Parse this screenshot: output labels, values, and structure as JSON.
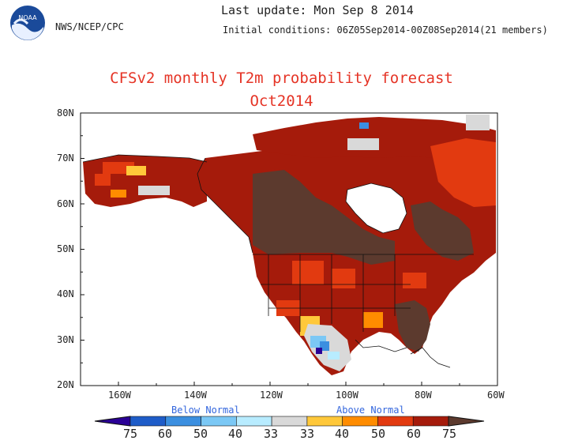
{
  "header": {
    "agency": "NWS/NCEP/CPC",
    "last_update": "Last update: Mon Sep  8 2014",
    "initial_conditions": "Initial conditions: 06Z05Sep2014-00Z08Sep2014(21 members)",
    "logo_text": "NOAA"
  },
  "title": "CFSv2 monthly T2m probability forecast",
  "subtitle": "Oct2014",
  "map": {
    "projection": "equirectangular",
    "lon_range": [
      -170,
      -60
    ],
    "lat_range": [
      20,
      80
    ],
    "lat_labels": [
      "80N",
      "70N",
      "60N",
      "50N",
      "40N",
      "30N",
      "20N"
    ],
    "lon_labels": [
      "160W",
      "140W",
      "120W",
      "100W",
      "80W",
      "60W"
    ],
    "dominant_category": "above normal (60-75+)",
    "colors": {
      "above_75": "#7a2a14",
      "above_70": "#5c3a2e",
      "above_60": "#a51b0b",
      "above_50": "#e23a10",
      "above_40": "#ff8c00",
      "above_33": "#ffc83a",
      "normal": "#d9d9d9",
      "below_33": "#b8ecff",
      "below_40": "#7bc8f5",
      "below_50": "#3b8fe0",
      "below_60": "#1e5cc8",
      "below_75": "#2a0096"
    }
  },
  "colorbar": {
    "below_label": "Below Normal",
    "above_label": "Above Normal",
    "tick_labels": [
      "75",
      "60",
      "50",
      "40",
      "33",
      "33",
      "40",
      "50",
      "60",
      "75"
    ],
    "colors": [
      "#1e5cc8",
      "#3b8fe0",
      "#7bc8f5",
      "#b8ecff",
      "#d9d9d9",
      "#ffc83a",
      "#ff8c00",
      "#e23a10",
      "#a51b0b"
    ],
    "end_low": "#2a0096",
    "end_high": "#5c3a2e"
  }
}
